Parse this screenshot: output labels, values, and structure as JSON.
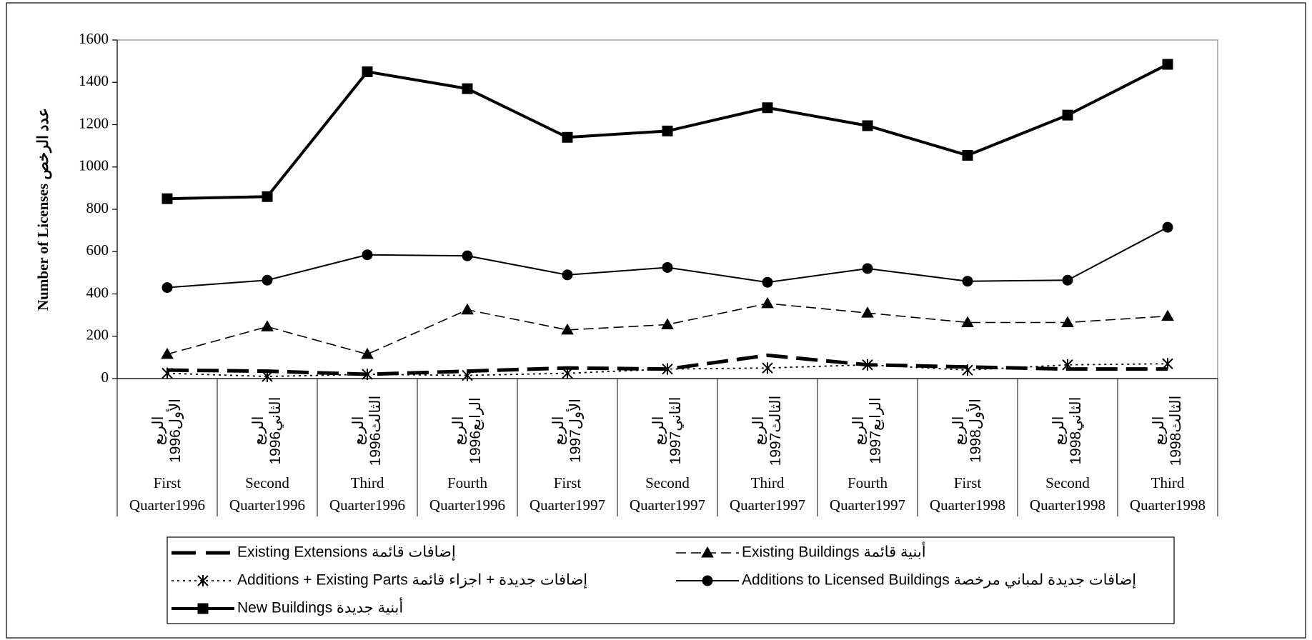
{
  "chart_data": {
    "type": "line",
    "ylabel": "Number of Licenses  عدد الرخص",
    "categories": [
      [
        "First",
        "Quarter1996"
      ],
      [
        "Second",
        "Quarter1996"
      ],
      [
        "Third",
        "Quarter1996"
      ],
      [
        "Fourth",
        "Quarter1996"
      ],
      [
        "First",
        "Quarter1997"
      ],
      [
        "Second",
        "Quarter1997"
      ],
      [
        "Third",
        "Quarter1997"
      ],
      [
        "Fourth",
        "Quarter1997"
      ],
      [
        "First",
        "Quarter1998"
      ],
      [
        "Second",
        "Quarter1998"
      ],
      [
        "Third",
        "Quarter1998"
      ]
    ],
    "arabic_categories": [
      [
        "الربع",
        "الأول1996"
      ],
      [
        "الربع",
        "الثاني1996"
      ],
      [
        "الربع",
        "الثالث1996"
      ],
      [
        "الربع",
        "الرابع1996"
      ],
      [
        "الربع",
        "الأول1997"
      ],
      [
        "الربع",
        "الثاني1997"
      ],
      [
        "الربع",
        "الثالث1997"
      ],
      [
        "الربع",
        "الرابع1997"
      ],
      [
        "الربع",
        "الأول1998"
      ],
      [
        "الربع",
        "الثاني1998"
      ],
      [
        "الربع",
        "الثالث1998"
      ]
    ],
    "ylim": [
      0,
      1600
    ],
    "yticks": [
      0,
      200,
      400,
      600,
      800,
      1000,
      1200,
      1400,
      1600
    ],
    "series": [
      {
        "name": "Existing Extensions إضافات قائمة",
        "color": "#000000",
        "line_style": "long-dash",
        "marker": "none",
        "values": [
          40,
          35,
          20,
          35,
          50,
          45,
          110,
          65,
          55,
          45,
          45
        ]
      },
      {
        "name": "Existing Buildings أبنية قائمة",
        "color": "#000000",
        "line_style": "dash",
        "marker": "triangle",
        "values": [
          115,
          245,
          115,
          325,
          230,
          255,
          355,
          310,
          265,
          265,
          295
        ]
      },
      {
        "name": "Additions + Existing  Parts إضافات جديدة + اجزاء قائمة",
        "color": "#000000",
        "line_style": "dot",
        "marker": "asterisk",
        "values": [
          25,
          10,
          20,
          15,
          25,
          45,
          50,
          65,
          40,
          65,
          70
        ]
      },
      {
        "name": "Additions to Licensed Buildings إضافات جديدة لمباني مرخصة",
        "color": "#000000",
        "line_style": "solid",
        "marker": "circle",
        "values": [
          430,
          465,
          585,
          580,
          490,
          525,
          455,
          520,
          460,
          465,
          715
        ]
      },
      {
        "name": "New  Buildings أبنية  جديدة",
        "color": "#000000",
        "line_style": "thick",
        "marker": "square",
        "values": [
          850,
          860,
          1450,
          1370,
          1140,
          1170,
          1280,
          1195,
          1055,
          1245,
          1485
        ]
      }
    ]
  }
}
